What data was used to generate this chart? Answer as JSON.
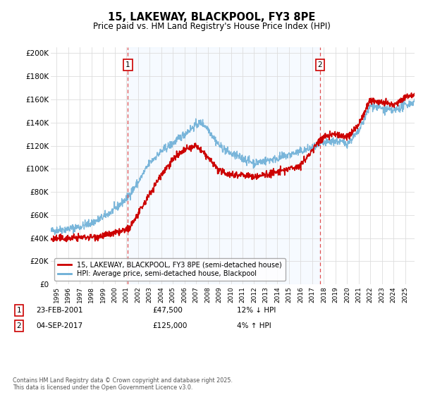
{
  "title": "15, LAKEWAY, BLACKPOOL, FY3 8PE",
  "subtitle": "Price paid vs. HM Land Registry's House Price Index (HPI)",
  "ylabel_ticks": [
    "£0",
    "£20K",
    "£40K",
    "£60K",
    "£80K",
    "£100K",
    "£120K",
    "£140K",
    "£160K",
    "£180K",
    "£200K"
  ],
  "ytick_values": [
    0,
    20000,
    40000,
    60000,
    80000,
    100000,
    120000,
    140000,
    160000,
    180000,
    200000
  ],
  "ylim": [
    0,
    205000
  ],
  "xlim_start": 1994.5,
  "xlim_end": 2025.8,
  "hpi_color": "#6baed6",
  "price_color": "#cc0000",
  "dashed_color": "#e05050",
  "fill_color": "#ddeeff",
  "marker1_date": 2001.14,
  "marker1_price": 47500,
  "marker2_date": 2017.67,
  "marker2_price": 125000,
  "legend_label1": "15, LAKEWAY, BLACKPOOL, FY3 8PE (semi-detached house)",
  "legend_label2": "HPI: Average price, semi-detached house, Blackpool",
  "annotation1_label": "1",
  "annotation1_date": "23-FEB-2001",
  "annotation1_price": "£47,500",
  "annotation1_hpi": "12% ↓ HPI",
  "annotation2_label": "2",
  "annotation2_date": "04-SEP-2017",
  "annotation2_price": "£125,000",
  "annotation2_hpi": "4% ↑ HPI",
  "footer": "Contains HM Land Registry data © Crown copyright and database right 2025.\nThis data is licensed under the Open Government Licence v3.0.",
  "background_color": "#ffffff",
  "grid_color": "#dddddd"
}
